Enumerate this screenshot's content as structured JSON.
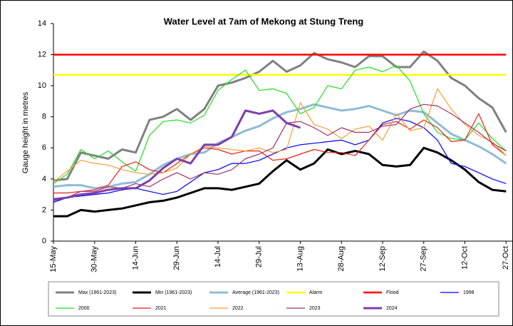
{
  "chart_data": {
    "type": "line",
    "title": "Water Level at 7am of Mekong at Stung Treng",
    "y_label": "Gauge height in metres",
    "categories": [
      "15-May",
      null,
      null,
      "30-May",
      null,
      null,
      "14-Jun",
      null,
      null,
      "29-Jun",
      null,
      null,
      "14-Jul",
      null,
      null,
      "29-Jul",
      null,
      null,
      "13-Aug",
      null,
      null,
      "28-Aug",
      null,
      null,
      "12-Sep",
      null,
      null,
      "27-Sep",
      null,
      null,
      "12-Oct",
      null,
      null,
      "27-Oct"
    ],
    "ylim": [
      0,
      14
    ],
    "yticks": [
      0,
      2,
      4,
      6,
      8,
      10,
      12,
      14
    ],
    "grid": false,
    "legend": "bottom",
    "series": [
      {
        "name": "Max (1961-2023)",
        "color": "#808080",
        "line_width": 3,
        "values": [
          3.9,
          4.0,
          5.7,
          5.5,
          5.3,
          5.9,
          5.7,
          7.8,
          8.0,
          8.5,
          7.8,
          8.5,
          10.0,
          10.2,
          10.5,
          10.9,
          11.6,
          10.9,
          11.3,
          12.1,
          11.7,
          11.5,
          11.2,
          11.9,
          11.9,
          11.2,
          11.2,
          12.2,
          11.6,
          10.5,
          10.0,
          9.2,
          8.6,
          7.0
        ]
      },
      {
        "name": "Min (1961-2023)",
        "color": "#000000",
        "line_width": 3,
        "values": [
          1.6,
          1.6,
          2.0,
          1.9,
          2.0,
          2.1,
          2.3,
          2.5,
          2.6,
          2.8,
          3.1,
          3.4,
          3.4,
          3.3,
          3.5,
          3.7,
          4.5,
          5.2,
          4.6,
          5.0,
          5.9,
          5.6,
          5.8,
          5.6,
          4.9,
          4.8,
          4.9,
          6.0,
          5.7,
          5.2,
          4.6,
          3.8,
          3.3,
          3.2
        ]
      },
      {
        "name": "Average (1961-2023)",
        "color": "#8fbcd4",
        "line_width": 3,
        "values": [
          3.5,
          3.6,
          3.6,
          3.4,
          3.5,
          3.7,
          3.8,
          4.3,
          4.9,
          5.3,
          5.6,
          5.7,
          6.3,
          6.7,
          7.1,
          7.4,
          7.9,
          8.3,
          8.5,
          8.8,
          8.6,
          8.4,
          8.5,
          8.7,
          8.4,
          8.1,
          8.4,
          8.3,
          7.6,
          6.9,
          6.5,
          6.1,
          5.6,
          5.0
        ]
      },
      {
        "name": "Alarm",
        "color": "#ffff00",
        "line_width": 2.5,
        "values": [
          10.7,
          10.7,
          10.7,
          10.7,
          10.7,
          10.7,
          10.7,
          10.7,
          10.7,
          10.7,
          10.7,
          10.7,
          10.7,
          10.7,
          10.7,
          10.7,
          10.7,
          10.7,
          10.7,
          10.7,
          10.7,
          10.7,
          10.7,
          10.7,
          10.7,
          10.7,
          10.7,
          10.7,
          10.7,
          10.7,
          10.7,
          10.7,
          10.7,
          10.7
        ]
      },
      {
        "name": "Flood",
        "color": "#ff0000",
        "line_width": 2.5,
        "values": [
          12,
          12,
          12,
          12,
          12,
          12,
          12,
          12,
          12,
          12,
          12,
          12,
          12,
          12,
          12,
          12,
          12,
          12,
          12,
          12,
          12,
          12,
          12,
          12,
          12,
          12,
          12,
          12,
          12,
          12,
          12,
          12,
          12,
          12
        ]
      },
      {
        "name": "1998",
        "color": "#0000ff",
        "line_width": 1.2,
        "values": [
          2.5,
          2.8,
          2.9,
          3.0,
          3.1,
          3.3,
          3.4,
          3.2,
          3.0,
          3.2,
          3.8,
          4.4,
          4.6,
          5.0,
          5.0,
          5.2,
          5.6,
          6.0,
          6.2,
          6.3,
          6.4,
          6.5,
          6.2,
          6.5,
          7.6,
          7.9,
          7.7,
          7.3,
          6.5,
          5.0,
          4.8,
          4.4,
          4.0,
          3.7
        ]
      },
      {
        "name": "2000",
        "color": "#22dd22",
        "line_width": 1.2,
        "values": [
          3.7,
          4.3,
          5.9,
          5.3,
          5.8,
          5.1,
          4.5,
          6.8,
          7.7,
          7.8,
          7.6,
          8.1,
          9.7,
          10.4,
          11.0,
          9.7,
          9.8,
          9.5,
          8.2,
          8.6,
          10.0,
          9.8,
          11.0,
          11.2,
          10.9,
          11.3,
          10.3,
          8.2,
          7.0,
          6.6,
          6.5,
          7.6,
          6.6,
          5.8
        ]
      },
      {
        "name": "2021",
        "color": "#e8201a",
        "line_width": 1.2,
        "values": [
          3.1,
          3.1,
          3.2,
          3.3,
          3.6,
          4.8,
          5.1,
          4.6,
          4.4,
          5.0,
          5.6,
          6.0,
          5.9,
          5.6,
          5.8,
          5.8,
          5.2,
          5.3,
          5.6,
          5.9,
          5.7,
          5.7,
          5.5,
          6.5,
          7.5,
          7.7,
          7.2,
          7.8,
          7.3,
          6.4,
          6.5,
          8.2,
          6.2,
          5.5
        ]
      },
      {
        "name": "2022",
        "color": "#f5a030",
        "line_width": 1.2,
        "values": [
          3.8,
          4.5,
          5.2,
          5.0,
          4.9,
          4.6,
          4.4,
          4.3,
          4.4,
          4.7,
          5.6,
          6.1,
          6.0,
          5.9,
          5.8,
          6.0,
          5.7,
          5.9,
          8.9,
          7.5,
          7.2,
          6.6,
          7.2,
          7.4,
          6.5,
          8.2,
          7.1,
          7.3,
          9.8,
          8.5,
          7.5,
          6.8,
          6.4,
          5.5
        ]
      },
      {
        "name": "2023",
        "color": "#a0306a",
        "line_width": 1.2,
        "values": [
          2.6,
          2.8,
          3.2,
          3.2,
          3.5,
          3.4,
          3.7,
          3.5,
          4.0,
          4.4,
          4.0,
          4.4,
          4.3,
          4.6,
          5.3,
          5.6,
          6.0,
          7.6,
          7.7,
          7.3,
          6.8,
          7.3,
          7.0,
          7.0,
          7.4,
          7.5,
          8.5,
          8.8,
          8.7,
          8.2,
          7.6,
          7.0,
          6.3,
          5.8
        ]
      },
      {
        "name": "2024",
        "color": "#7b3fb0",
        "line_width": 3,
        "values": [
          2.7,
          2.8,
          3.0,
          3.1,
          3.3,
          3.4,
          3.4,
          3.9,
          4.7,
          5.3,
          5.0,
          6.2,
          6.2,
          6.7,
          8.4,
          8.2,
          8.4,
          7.6,
          7.3,
          null,
          null,
          null,
          null,
          null,
          null,
          null,
          null,
          null,
          null,
          null,
          null,
          null,
          null,
          null
        ]
      }
    ]
  }
}
